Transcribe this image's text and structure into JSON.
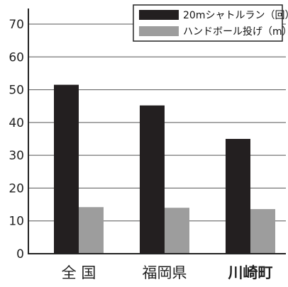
{
  "chart_data": {
    "type": "bar",
    "categories": [
      "全 国",
      "福岡県",
      "川崎町"
    ],
    "category_bold": [
      false,
      false,
      true
    ],
    "series": [
      {
        "name": "20mシャトルラン（回）",
        "values": [
          51.5,
          45.2,
          35.0
        ],
        "color": "#231f20"
      },
      {
        "name": "ハンドボール投げ（m）",
        "values": [
          14.2,
          14.0,
          13.6
        ],
        "color": "#9d9d9d"
      }
    ],
    "title": "",
    "xlabel": "",
    "ylabel": "",
    "ylim": [
      0,
      70
    ],
    "yticks": [
      0,
      10,
      20,
      30,
      40,
      50,
      60,
      70
    ],
    "grid": true,
    "legend_position": "top-right"
  }
}
